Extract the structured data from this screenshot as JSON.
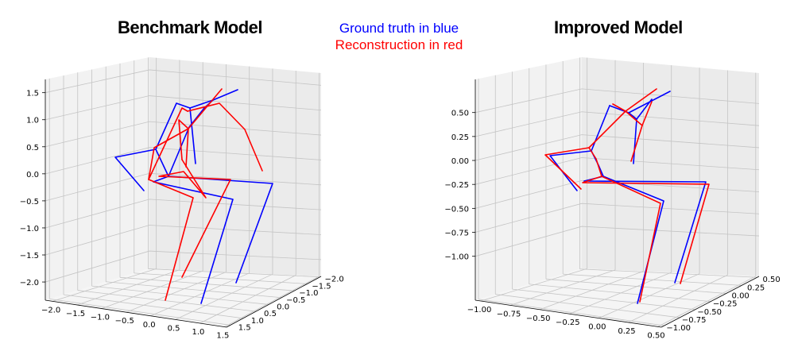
{
  "header": {
    "legend_blue": "Ground truth in blue",
    "legend_red": "Reconstruction in red",
    "legend_blue_color": "#0000ff",
    "legend_red_color": "#ff0000"
  },
  "chart_data": [
    {
      "type": "line",
      "title": "Benchmark Model",
      "projection": "3d",
      "grid": true,
      "z_ticks": [
        "1.5",
        "1.0",
        "0.5",
        "0.0",
        "−0.5",
        "−1.0",
        "−1.5",
        "−2.0"
      ],
      "x_ticks": [
        "−2.0",
        "−1.5",
        "−1.0",
        "−0.5",
        "0.0",
        "0.5",
        "1.0",
        "1.5"
      ],
      "y_ticks": [
        "1.5",
        "1.0",
        "0.5",
        "0.0",
        "−0.5",
        "−1.0",
        "−1.5",
        "−2.0"
      ],
      "series": [
        {
          "color": "#0000ff",
          "segments": [
            [
              [
                239,
                136
              ],
              [
                222,
                130
              ],
              [
                196,
                188
              ],
              [
                145,
                198
              ],
              [
                181,
                240
              ]
            ],
            [
              [
                239,
                136
              ],
              [
                246,
                206
              ]
            ],
            [
              [
                239,
                136
              ],
              [
                268,
                126
              ]
            ],
            [
              [
                268,
                126
              ],
              [
                299,
                113
              ]
            ],
            [
              [
                268,
                126
              ],
              [
                257,
                136
              ]
            ],
            [
              [
                257,
                136
              ],
              [
                238,
                160
              ],
              [
                212,
                222
              ]
            ],
            [
              [
                212,
                222
              ],
              [
                196,
                188
              ]
            ],
            [
              [
                212,
                222
              ],
              [
                343,
                231
              ],
              [
                297,
                356
              ]
            ],
            [
              [
                212,
                222
              ],
              [
                193,
                229
              ],
              [
                293,
                251
              ],
              [
                253,
                382
              ]
            ]
          ]
        },
        {
          "color": "#ff0000",
          "segments": [
            [
              [
                236,
                140
              ],
              [
                229,
                136
              ],
              [
                187,
                226
              ],
              [
                194,
                186
              ],
              [
                237,
                162
              ]
            ],
            [
              [
                237,
                162
              ],
              [
                225,
                151
              ],
              [
                229,
                201
              ]
            ],
            [
              [
                229,
                201
              ],
              [
                259,
                249
              ],
              [
                231,
                216
              ],
              [
                200,
                222
              ],
              [
                290,
                226
              ],
              [
                229,
                349
              ]
            ],
            [
              [
                187,
                226
              ],
              [
                243,
                249
              ],
              [
                208,
                378
              ]
            ],
            [
              [
                237,
                162
              ],
              [
                279,
                112
              ]
            ],
            [
              [
                236,
                140
              ],
              [
                276,
                130
              ],
              [
                308,
                163
              ],
              [
                330,
                215
              ]
            ],
            [
              [
                237,
                162
              ],
              [
                234,
                210
              ]
            ]
          ]
        }
      ]
    },
    {
      "type": "line",
      "title": "Improved Model",
      "projection": "3d",
      "grid": true,
      "z_ticks": [
        "0.50",
        "0.25",
        "0.00",
        "−0.25",
        "−0.50",
        "−0.75",
        "−1.00"
      ],
      "x_ticks": [
        "−1.00",
        "−0.75",
        "−0.50",
        "−0.25",
        "0.00",
        "0.25",
        "0.50"
      ],
      "y_ticks": [
        "−1.00",
        "−0.75",
        "−0.50",
        "−0.25",
        "0.00",
        "0.25",
        "0.50"
      ],
      "series": [
        {
          "color": "#0000ff",
          "segments": [
            [
              [
                767,
                133
              ],
              [
                744,
                190
              ],
              [
                692,
                196
              ],
              [
                726,
                240
              ]
            ],
            [
              [
                767,
                133
              ],
              [
                791,
                142
              ],
              [
                801,
                150
              ],
              [
                797,
                206
              ]
            ],
            [
              [
                791,
                142
              ],
              [
                843,
                115
              ]
            ],
            [
              [
                801,
                150
              ],
              [
                820,
                125
              ]
            ],
            [
              [
                744,
                190
              ],
              [
                753,
                208
              ],
              [
                759,
                222
              ],
              [
                735,
                228
              ]
            ],
            [
              [
                735,
                228
              ],
              [
                888,
                229
              ],
              [
                849,
                356
              ]
            ],
            [
              [
                759,
                222
              ],
              [
                835,
                253
              ],
              [
                802,
                382
              ]
            ]
          ]
        },
        {
          "color": "#ff0000",
          "segments": [
            [
              [
                771,
                131
              ],
              [
                787,
                140
              ],
              [
                741,
                186
              ],
              [
                686,
                195
              ],
              [
                731,
                238
              ]
            ],
            [
              [
                787,
                140
              ],
              [
                826,
                112
              ]
            ],
            [
              [
                787,
                140
              ],
              [
                808,
                158
              ],
              [
                794,
                203
              ]
            ],
            [
              [
                808,
                158
              ],
              [
                820,
                128
              ]
            ],
            [
              [
                741,
                186
              ],
              [
                750,
                200
              ],
              [
                757,
                222
              ]
            ],
            [
              [
                757,
                222
              ],
              [
                733,
                230
              ],
              [
                892,
                232
              ],
              [
                856,
                357
              ]
            ],
            [
              [
                757,
                222
              ],
              [
                831,
                256
              ],
              [
                805,
                380
              ]
            ]
          ]
        }
      ]
    }
  ]
}
